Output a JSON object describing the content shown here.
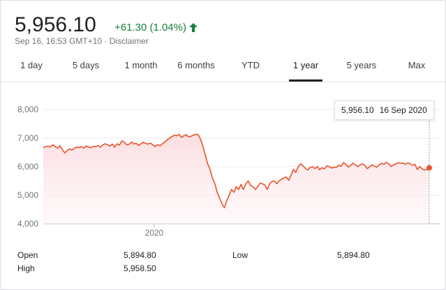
{
  "quote": {
    "price": "5,956.10",
    "change": "+61.30 (1.04%)",
    "change_direction_icon": "arrow-up-icon",
    "timestamp": "Sep 16, 16:53 GMT+10",
    "separator": " · ",
    "disclaimer": "Disclaimer"
  },
  "tabs": [
    "1 day",
    "5 days",
    "1 month",
    "6 months",
    "YTD",
    "1 year",
    "5 years",
    "Max"
  ],
  "active_tab": "1 year",
  "tooltip": {
    "value": "5,956.10",
    "date": "16 Sep 2020"
  },
  "stats": {
    "open_label": "Open",
    "open_value": "5,894.80",
    "high_label": "High",
    "high_value": "5,958.50",
    "low_label": "Low",
    "low_value": "5,894.80"
  },
  "colors": {
    "line": "#e8542a",
    "fill": "#fbdde1",
    "up": "#188038"
  },
  "chart_data": {
    "type": "area",
    "y_ticks": [
      "8,000",
      "7,000",
      "6,000",
      "5,000",
      "4,000"
    ],
    "x_ticks": [
      "2020"
    ],
    "ylim": [
      4000,
      8000
    ],
    "grid": true,
    "series": [
      {
        "values": [
          6660,
          6700,
          6720,
          6690,
          6760,
          6700,
          6650,
          6730,
          6600,
          6480,
          6560,
          6620,
          6580,
          6640,
          6690,
          6660,
          6700,
          6650,
          6720,
          6690,
          6660,
          6710,
          6700,
          6740,
          6680,
          6760,
          6800,
          6760,
          6720,
          6790,
          6680,
          6800,
          6750,
          6900,
          6860,
          6760,
          6780,
          6860,
          6790,
          6820,
          6740,
          6800,
          6850,
          6810,
          6790,
          6820,
          6760,
          6700,
          6770,
          6730,
          6800,
          6860,
          6940,
          7000,
          7050,
          7100,
          7080,
          7130,
          7020,
          7080,
          7120,
          7040,
          7060,
          7100,
          7130,
          7120,
          6960,
          6720,
          6400,
          6100,
          5900,
          5600,
          5400,
          5100,
          4900,
          4700,
          4560,
          4800,
          5000,
          5200,
          5100,
          5300,
          5200,
          5380,
          5200,
          5400,
          5500,
          5340,
          5300,
          5200,
          5300,
          5420,
          5400,
          5360,
          5200,
          5400,
          5480,
          5500,
          5400,
          5500,
          5560,
          5600,
          5640,
          5520,
          5700,
          5900,
          5800,
          6000,
          6100,
          6030,
          5940,
          5880,
          5970,
          6000,
          5930,
          6000,
          5890,
          5960,
          5920,
          6030,
          6000,
          5950,
          5980,
          5970,
          6050,
          6010,
          6140,
          6080,
          5980,
          6050,
          6120,
          6060,
          6000,
          6060,
          6100,
          6040,
          5930,
          6000,
          6060,
          6020,
          5980,
          6060,
          6120,
          6080,
          6150,
          6100,
          6000,
          6060,
          6100,
          6140,
          6120,
          6120,
          6080,
          6130,
          6100,
          6050,
          6080,
          5900,
          6000,
          5920,
          5880,
          5900,
          5956
        ]
      }
    ]
  }
}
